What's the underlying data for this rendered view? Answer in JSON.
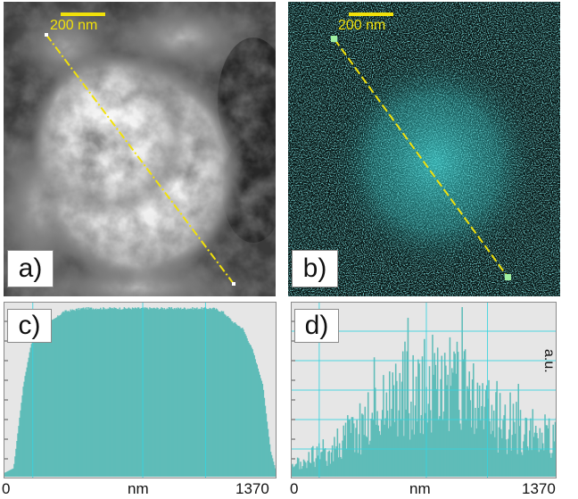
{
  "panels": {
    "a": {
      "label": "a)",
      "scale_bar": "200 nm"
    },
    "b": {
      "label": "b)",
      "scale_bar": "200 nm"
    },
    "c": {
      "label": "c)"
    },
    "d": {
      "label": "d)"
    }
  },
  "axes": {
    "c": {
      "x_min": "0",
      "x_mid": "nm",
      "x_max": "1370"
    },
    "d": {
      "x_min": "0",
      "x_mid": "nm",
      "x_max": "1370"
    },
    "y_unit": "a.u."
  },
  "colors": {
    "profile_fill": "#5fbcb8",
    "plot_bg": "#e6e6e6",
    "grid": "#35d4e0",
    "scan_line": "#f1e10a",
    "edx_cyan": "#3fd6d6"
  },
  "chart_data": [
    {
      "type": "area",
      "panel": "c",
      "x_range": [
        0,
        1370
      ],
      "xlabel": "nm",
      "ylabel": "a.u.",
      "x": [
        0,
        50,
        100,
        150,
        200,
        250,
        300,
        400,
        500,
        600,
        700,
        800,
        900,
        1000,
        1050,
        1100,
        1150,
        1200,
        1250,
        1300,
        1340,
        1370
      ],
      "values": [
        0.02,
        0.05,
        0.55,
        0.86,
        0.9,
        0.93,
        0.98,
        1.0,
        1.0,
        1.0,
        1.0,
        1.0,
        1.0,
        1.0,
        1.0,
        0.98,
        0.92,
        0.88,
        0.75,
        0.55,
        0.15,
        0.02
      ]
    },
    {
      "type": "area",
      "panel": "d",
      "x_range": [
        0,
        1370
      ],
      "xlabel": "nm",
      "ylabel": "a.u.",
      "x": [
        0,
        100,
        200,
        300,
        400,
        500,
        600,
        700,
        800,
        900,
        1000,
        1100,
        1200,
        1300,
        1370
      ],
      "values": [
        0.05,
        0.12,
        0.18,
        0.28,
        0.4,
        0.52,
        0.58,
        0.62,
        0.6,
        0.56,
        0.45,
        0.38,
        0.3,
        0.27,
        0.25
      ]
    }
  ]
}
